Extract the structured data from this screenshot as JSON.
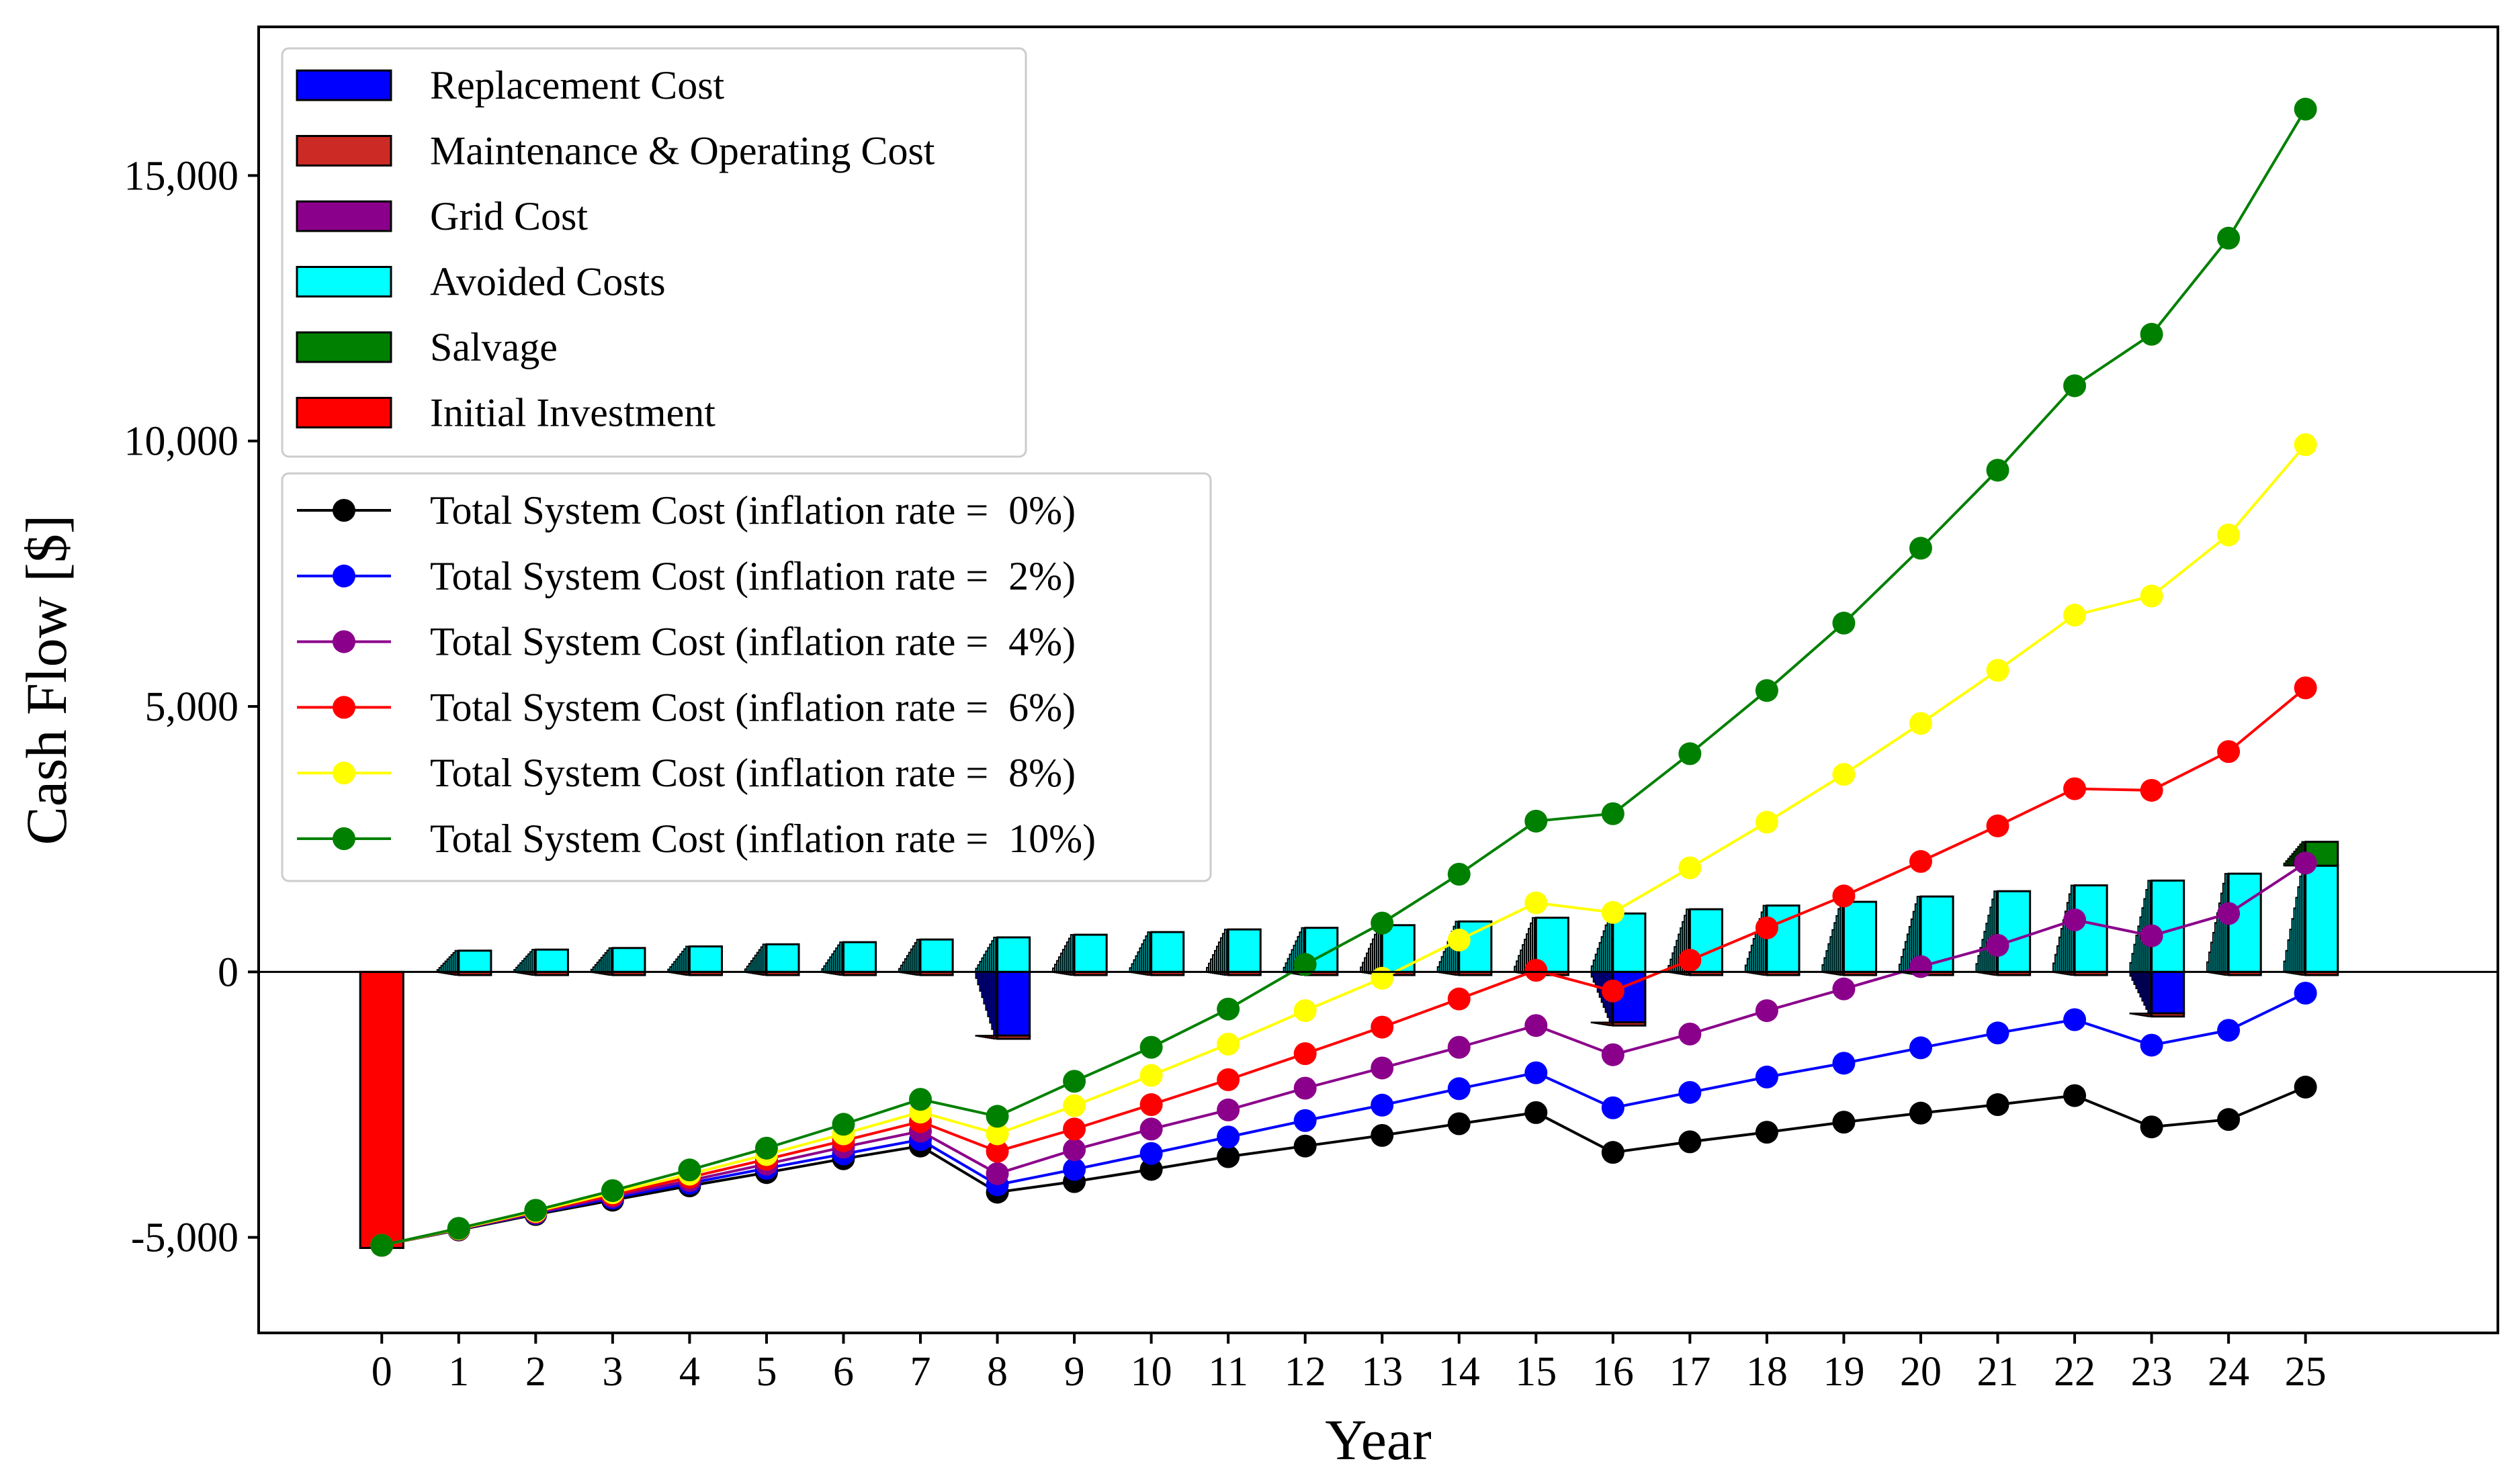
{
  "chart_data": {
    "type": "bar+line",
    "title": "",
    "xlabel": "Year",
    "ylabel": "Cash Flow [$]",
    "ylim": [
      -6800,
      17800
    ],
    "xlim": [
      -1.6,
      27.5
    ],
    "x": [
      0,
      1,
      2,
      3,
      4,
      5,
      6,
      7,
      8,
      9,
      10,
      11,
      12,
      13,
      14,
      15,
      16,
      17,
      18,
      19,
      20,
      21,
      22,
      23,
      24,
      25
    ],
    "x_tick_labels": [
      "0",
      "1",
      "2",
      "3",
      "4",
      "5",
      "6",
      "7",
      "8",
      "9",
      "10",
      "11",
      "12",
      "13",
      "14",
      "15",
      "16",
      "17",
      "18",
      "19",
      "20",
      "21",
      "22",
      "23",
      "24",
      "25"
    ],
    "y_ticks": [
      -5000,
      0,
      5000,
      10000,
      15000
    ],
    "y_tick_labels": [
      "-5,000",
      "0",
      "5,000",
      "10,000",
      "15,000"
    ],
    "bar_series": [
      {
        "name": "Replacement Cost",
        "color": "#0000ff",
        "values": [
          0,
          0,
          0,
          0,
          0,
          0,
          0,
          0,
          -1200,
          0,
          0,
          0,
          0,
          0,
          0,
          0,
          -950,
          0,
          0,
          0,
          0,
          0,
          0,
          -780,
          0,
          0
        ]
      },
      {
        "name": "Maintenance & Operating Cost",
        "color": "#cc2a24",
        "values": [
          0,
          -60,
          -60,
          -60,
          -60,
          -60,
          -60,
          -60,
          -60,
          -60,
          -60,
          -60,
          -60,
          -60,
          -60,
          -60,
          -60,
          -60,
          -60,
          -60,
          -60,
          -60,
          -60,
          -60,
          -60,
          -60
        ]
      },
      {
        "name": "Grid Cost",
        "color": "#8b008b",
        "values": [
          0,
          0,
          0,
          0,
          0,
          0,
          0,
          0,
          0,
          0,
          0,
          0,
          0,
          0,
          0,
          0,
          0,
          0,
          0,
          0,
          0,
          0,
          0,
          0,
          0,
          0
        ]
      },
      {
        "name": "Avoided Costs",
        "color": "#00ffff",
        "values": [
          0,
          400,
          420,
          450,
          480,
          520,
          560,
          610,
          650,
          700,
          750,
          800,
          830,
          880,
          950,
          1020,
          1100,
          1180,
          1250,
          1320,
          1420,
          1520,
          1630,
          1720,
          1850,
          2000
        ]
      },
      {
        "name": "Salvage",
        "color": "#008000",
        "values": [
          0,
          0,
          0,
          0,
          0,
          0,
          0,
          0,
          0,
          0,
          0,
          0,
          0,
          0,
          0,
          0,
          0,
          0,
          0,
          0,
          0,
          0,
          0,
          0,
          0,
          450
        ]
      },
      {
        "name": "Initial Investment",
        "color": "#ff0000",
        "values": [
          -5200,
          0,
          0,
          0,
          0,
          0,
          0,
          0,
          0,
          0,
          0,
          0,
          0,
          0,
          0,
          0,
          0,
          0,
          0,
          0,
          0,
          0,
          0,
          0,
          0,
          0
        ]
      }
    ],
    "series": [
      {
        "name": "Total System Cost (inflation rate =  0%)",
        "color": "#000000",
        "values": [
          -5150,
          -4860,
          -4570,
          -4300,
          -4030,
          -3780,
          -3520,
          -3280,
          -4150,
          -3950,
          -3720,
          -3480,
          -3280,
          -3080,
          -2860,
          -2650,
          -3400,
          -3200,
          -3020,
          -2830,
          -2660,
          -2500,
          -2330,
          -2920,
          -2780,
          -2170
        ]
      },
      {
        "name": "Total System Cost (inflation rate =  2%)",
        "color": "#0000ff",
        "values": [
          -5150,
          -4850,
          -4550,
          -4260,
          -3980,
          -3700,
          -3430,
          -3160,
          -4010,
          -3720,
          -3420,
          -3110,
          -2800,
          -2510,
          -2200,
          -1900,
          -2560,
          -2270,
          -1980,
          -1720,
          -1430,
          -1150,
          -900,
          -1380,
          -1100,
          -400
        ]
      },
      {
        "name": "Total System Cost (inflation rate =  4%)",
        "color": "#8b008b",
        "values": [
          -5150,
          -4850,
          -4540,
          -4230,
          -3930,
          -3620,
          -3300,
          -3000,
          -3800,
          -3350,
          -2960,
          -2600,
          -2190,
          -1810,
          -1420,
          -1010,
          -1560,
          -1170,
          -730,
          -320,
          100,
          500,
          980,
          680,
          1100,
          2050
        ]
      },
      {
        "name": "Total System Cost (inflation rate =  6%)",
        "color": "#ff0000",
        "values": [
          -5150,
          -4840,
          -4520,
          -4200,
          -3870,
          -3530,
          -3180,
          -2820,
          -3380,
          -2960,
          -2500,
          -2030,
          -1540,
          -1040,
          -510,
          30,
          -360,
          220,
          830,
          1430,
          2080,
          2750,
          3450,
          3420,
          4150,
          5350
        ]
      },
      {
        "name": "Total System Cost (inflation rate =  8%)",
        "color": "#ffff00",
        "values": [
          -5150,
          -4840,
          -4510,
          -4160,
          -3810,
          -3440,
          -3050,
          -2640,
          -3050,
          -2520,
          -1950,
          -1360,
          -730,
          -120,
          600,
          1300,
          1120,
          1960,
          2820,
          3720,
          4680,
          5680,
          6720,
          7080,
          8230,
          9930
        ]
      },
      {
        "name": "Total System Cost (inflation rate =  10%)",
        "color": "#008000",
        "values": [
          -5150,
          -4830,
          -4490,
          -4120,
          -3730,
          -3320,
          -2870,
          -2400,
          -2720,
          -2060,
          -1420,
          -700,
          140,
          920,
          1840,
          2840,
          2980,
          4110,
          5300,
          6570,
          7980,
          9450,
          11040,
          12010,
          13820,
          16250
        ]
      }
    ]
  }
}
